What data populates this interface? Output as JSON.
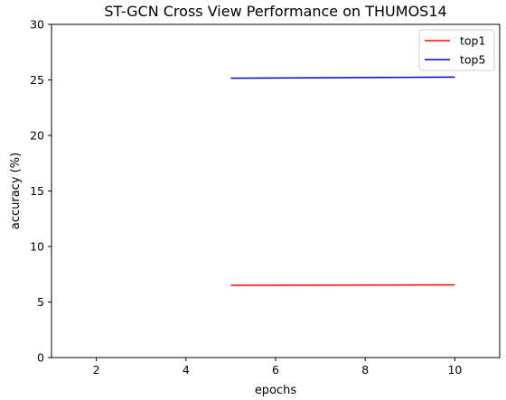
{
  "chart_data": {
    "type": "line",
    "title": "ST-GCN Cross View Performance on THUMOS14",
    "xlabel": "epochs",
    "ylabel": "accuracy (%)",
    "xlim": [
      1.0,
      11.0
    ],
    "ylim": [
      0,
      30
    ],
    "xticks": [
      2,
      4,
      6,
      8,
      10
    ],
    "yticks": [
      0,
      5,
      10,
      15,
      20,
      25,
      30
    ],
    "grid": false,
    "legend": "top-right",
    "series": [
      {
        "name": "top1",
        "color": "#ff0000",
        "x": [
          5,
          10
        ],
        "y": [
          6.5,
          6.55
        ]
      },
      {
        "name": "top5",
        "color": "#0000cc",
        "x": [
          5,
          10
        ],
        "y": [
          25.15,
          25.25
        ]
      }
    ]
  }
}
